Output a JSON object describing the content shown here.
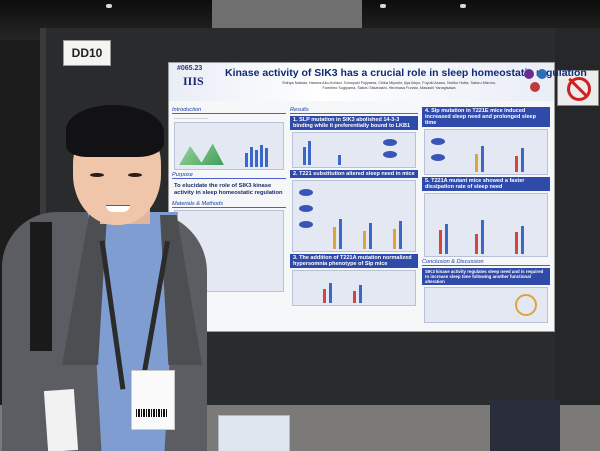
{
  "booth_sign": "DD10",
  "poster": {
    "id": "#065.23",
    "logo": "IIIS",
    "title": "Kinase activity of SIK3 has a crucial role in sleep homeostatic regulation",
    "authors": "Shinya Nakata, Haruna Ako-Kohkoi, Tomoyuki Fujiyama, Chika Miyoshi, Aya Ikkyu, Fuyuki Asano, Noriko Hotta, Satoru Mizuno, Fumihiro Sugiyama, Satoru Takahashi, Hiromasa Funato, Masashi Yanagisawa",
    "sections": {
      "introduction": "Introduction",
      "purpose": "Purpose",
      "purpose_text": "To elucidate the role of SIK3 kinase activity in sleep homeostatic regulation",
      "methods": "Materials & Methods",
      "results": "Results",
      "result1": "1. SLP mutation in SIK3 abolished 14-3-3 binding while it preferentially bound to LKB1",
      "result2": "2. T221 substitution altered sleep need in mice",
      "result3": "3. The addition of T221A mutation normalized hypersomnia phenotype of Slp mice",
      "result4": "4. Slp mutation in T221E mice induced increased sleep need and prolonged sleep time",
      "result5": "5. T221A mutant mice showed a faster dissipation rate of sleep need",
      "conclusion": "Conclusion & Discussion",
      "conclusion_text": "SIK3 kinase activity regulates sleep need and is required to increase sleep time following another functional alteration"
    }
  },
  "colors": {
    "poster_accent": "#2f4aa8",
    "poster_title": "#0e2a78"
  }
}
